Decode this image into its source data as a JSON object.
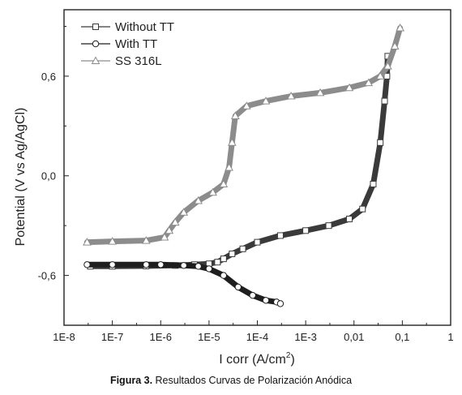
{
  "caption": {
    "label": "Figura 3.",
    "text": "Resultados Curvas de Polarización Anódica"
  },
  "chart_data": {
    "type": "line",
    "title": "",
    "xlabel": "I corr (A/cm",
    "xlabel_sup": "2",
    "xlabel_end": ")",
    "ylabel": "Potential (V vs Ag/AgCl)",
    "x_scale": "log",
    "xlim": [
      1e-08,
      1
    ],
    "ylim": [
      -0.9,
      1.0
    ],
    "x_ticks": [
      {
        "value": 1e-08,
        "label": "1E-8"
      },
      {
        "value": 1e-07,
        "label": "1E-7"
      },
      {
        "value": 1e-06,
        "label": "1E-6"
      },
      {
        "value": 1e-05,
        "label": "1E-5"
      },
      {
        "value": 0.0001,
        "label": "1E-4"
      },
      {
        "value": 0.001,
        "label": "1E-3"
      },
      {
        "value": 0.01,
        "label": "0,01"
      },
      {
        "value": 0.1,
        "label": "0,1"
      },
      {
        "value": 1,
        "label": "1"
      }
    ],
    "y_ticks": [
      {
        "value": 0.6,
        "label": "0,6"
      },
      {
        "value": 0.0,
        "label": "0,0"
      },
      {
        "value": -0.6,
        "label": "-0,6"
      }
    ],
    "grid": false,
    "legend_position": "top-left",
    "series": [
      {
        "name": "Without TT",
        "marker": "square",
        "color": "#3a3a3a",
        "x": [
          3.5e-08,
          1e-07,
          5e-07,
          2e-06,
          5e-06,
          1e-05,
          1.5e-05,
          2e-05,
          3e-05,
          5e-05,
          0.0001,
          0.0003,
          0.001,
          0.003,
          0.008,
          0.015,
          0.025,
          0.035,
          0.043,
          0.048,
          0.05
        ],
        "y": [
          -0.545,
          -0.545,
          -0.543,
          -0.54,
          -0.535,
          -0.53,
          -0.52,
          -0.5,
          -0.47,
          -0.44,
          -0.4,
          -0.36,
          -0.33,
          -0.3,
          -0.26,
          -0.2,
          -0.05,
          0.2,
          0.45,
          0.6,
          0.72
        ]
      },
      {
        "name": "With TT",
        "marker": "circle",
        "color": "#1e1e1e",
        "x": [
          3e-08,
          1e-07,
          5e-07,
          1e-06,
          3e-06,
          6e-06,
          1e-05,
          2e-05,
          4e-05,
          8e-05,
          0.00015,
          0.00025,
          0.0003
        ],
        "y": [
          -0.535,
          -0.535,
          -0.535,
          -0.535,
          -0.54,
          -0.545,
          -0.56,
          -0.6,
          -0.67,
          -0.72,
          -0.75,
          -0.76,
          -0.77
        ]
      },
      {
        "name": "SS 316L",
        "marker": "triangle",
        "color": "#8c8c8c",
        "x": [
          3e-08,
          1e-07,
          5e-07,
          1.2e-06,
          1.5e-06,
          2e-06,
          3e-06,
          6e-06,
          1.2e-05,
          2e-05,
          2.6e-05,
          3e-05,
          3.5e-05,
          6e-05,
          0.00015,
          0.0005,
          0.002,
          0.008,
          0.02,
          0.035,
          0.05,
          0.07,
          0.09
        ],
        "y": [
          -0.4,
          -0.395,
          -0.39,
          -0.37,
          -0.33,
          -0.28,
          -0.22,
          -0.15,
          -0.1,
          -0.05,
          0.05,
          0.2,
          0.36,
          0.42,
          0.45,
          0.48,
          0.5,
          0.53,
          0.56,
          0.6,
          0.66,
          0.78,
          0.89
        ]
      }
    ]
  }
}
